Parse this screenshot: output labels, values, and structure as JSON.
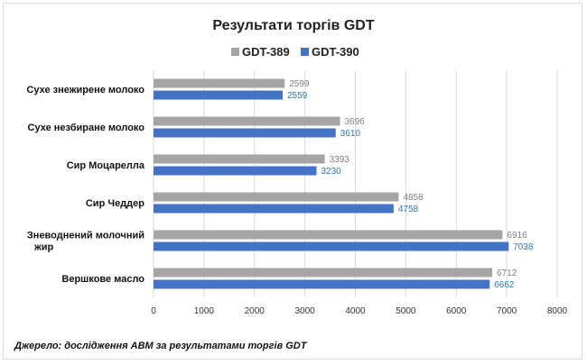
{
  "chart_data": {
    "type": "bar",
    "orientation": "horizontal",
    "title": "Результати торгів GDT",
    "categories": [
      "Сухе знежирене молоко",
      "Сухе незбиране молоко",
      "Сир Моцарелла",
      "Сир Чеддер",
      "Зневоднений молочний жир",
      "Вершкове масло"
    ],
    "series": [
      {
        "name": "GDT-389",
        "color": "#a5a5a5",
        "label_color": "#7f7f7f",
        "values": [
          2599,
          3696,
          3393,
          4858,
          6916,
          6712
        ]
      },
      {
        "name": "GDT-390",
        "color": "#4472c4",
        "label_color": "#2e75b6",
        "values": [
          2559,
          3610,
          3230,
          4758,
          7038,
          6662
        ]
      }
    ],
    "xlim": [
      0,
      8000
    ],
    "ticks": [
      0,
      1000,
      2000,
      3000,
      4000,
      5000,
      6000,
      7000,
      8000
    ],
    "grid": true,
    "legend_position": "top"
  },
  "source_note": "Джерело: дослідження АВМ за результатами торгів GDT"
}
